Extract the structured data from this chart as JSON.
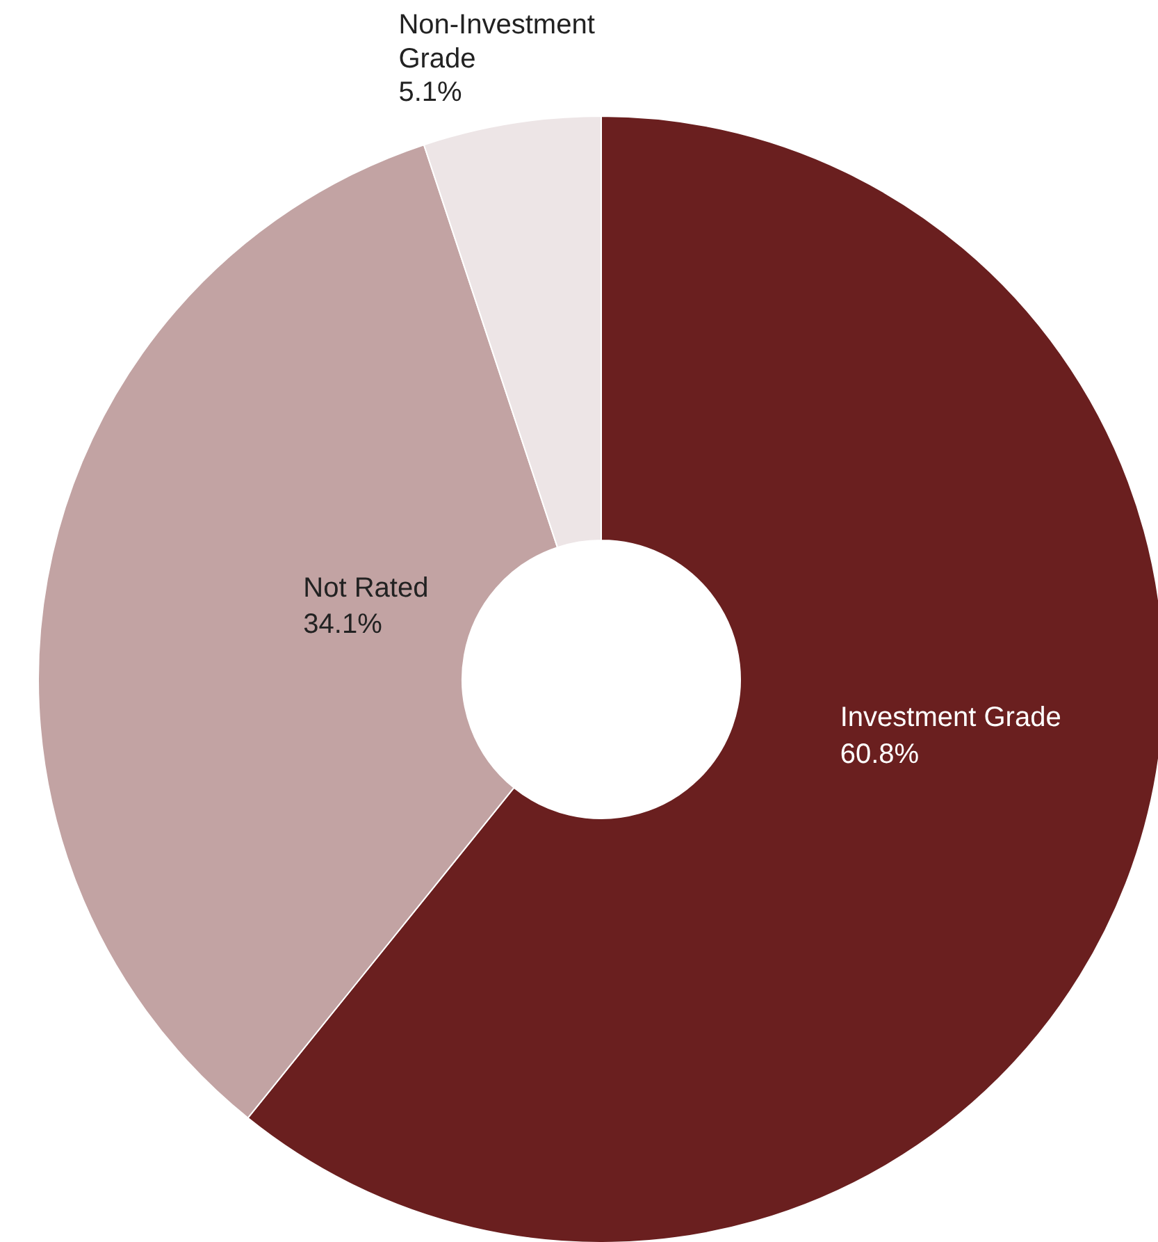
{
  "chart_data": {
    "type": "donut",
    "categories": [
      "Investment Grade",
      "Not Rated",
      "Non-Investment Grade"
    ],
    "values": [
      60.8,
      34.1,
      5.1
    ],
    "colors": [
      "#6a1f1f",
      "#c2a3a3",
      "#ede5e6"
    ],
    "value_labels": [
      "60.8%",
      "34.1%",
      "5.1%"
    ]
  }
}
